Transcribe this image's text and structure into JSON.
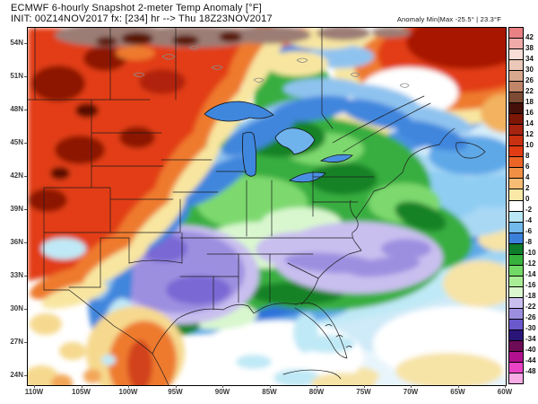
{
  "header": {
    "title_line1": "ECMWF 6-hourly Snapshot 2-meter Temp Anomaly [°F]",
    "title_line2": "INIT: 00Z14NOV2017 fx: [234] hr --> Thu 18Z23NOV2017",
    "anomaly_minmax": "Anomaly Min|Max -25.5° | 23.3°F"
  },
  "axes": {
    "lat_labels": [
      "54N",
      "51N",
      "48N",
      "45N",
      "42N",
      "39N",
      "36N",
      "33N",
      "30N",
      "27N",
      "24N"
    ],
    "lon_labels": [
      "110W",
      "105W",
      "100W",
      "95W",
      "90W",
      "85W",
      "80W",
      "75W",
      "70W",
      "65W",
      "60W"
    ]
  },
  "colorbar": {
    "unit": "°F",
    "cells": [
      {
        "color": "#e98083",
        "label": "42"
      },
      {
        "color": "#f0aaa8",
        "label": "38"
      },
      {
        "color": "#f8ddd6",
        "label": "34"
      },
      {
        "color": "#ecc8b8",
        "label": "30"
      },
      {
        "color": "#d8a88e",
        "label": "26"
      },
      {
        "color": "#c08468",
        "label": "22"
      },
      {
        "color": "#7d4b33",
        "label": "18"
      },
      {
        "color": "#45100a",
        "label": "16"
      },
      {
        "color": "#7c1605",
        "label": "14"
      },
      {
        "color": "#a62310",
        "label": "12"
      },
      {
        "color": "#c93110",
        "label": "10"
      },
      {
        "color": "#e23c14",
        "label": "8"
      },
      {
        "color": "#ec6426",
        "label": "6"
      },
      {
        "color": "#f18f44",
        "label": "4"
      },
      {
        "color": "#f6bc74",
        "label": "2"
      },
      {
        "color": "#fae9a6",
        "label": "0"
      },
      {
        "color": "#ffffff",
        "label": "-2"
      },
      {
        "color": "#b9e7f5",
        "label": "-4"
      },
      {
        "color": "#72b9ec",
        "label": "-6"
      },
      {
        "color": "#3a80da",
        "label": "-8"
      },
      {
        "color": "#0d7c2b",
        "label": "-10"
      },
      {
        "color": "#36b13d",
        "label": "-12"
      },
      {
        "color": "#72d966",
        "label": "-14"
      },
      {
        "color": "#a9ee96",
        "label": "-16"
      },
      {
        "color": "#daf7cf",
        "label": "-18"
      },
      {
        "color": "#c9bfef",
        "label": "-22"
      },
      {
        "color": "#9d8fe0",
        "label": "-26"
      },
      {
        "color": "#6a58cd",
        "label": "-30"
      },
      {
        "color": "#2a1578",
        "label": "-34"
      },
      {
        "color": "#6e0b57",
        "label": "-40"
      },
      {
        "color": "#b3108f",
        "label": "-44"
      },
      {
        "color": "#ea43c5",
        "label": "-48"
      },
      {
        "color": "#f9abe6",
        "label": null
      }
    ]
  }
}
